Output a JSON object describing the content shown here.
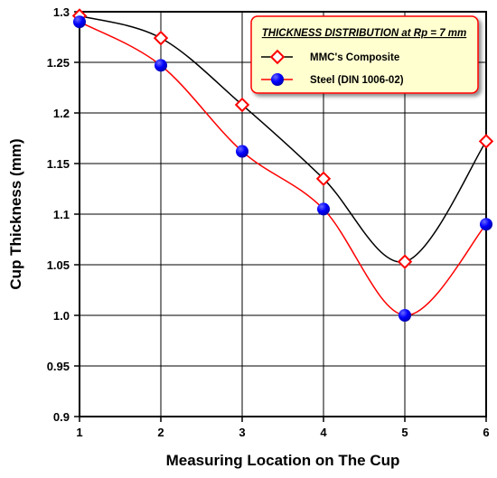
{
  "chart_data": {
    "type": "line",
    "title": "THICKNESS DISTRIBUTION at Rp = 7 mm",
    "xlabel": "Measuring Location on The Cup",
    "ylabel": "Cup Thickness (mm)",
    "x": [
      1,
      2,
      3,
      4,
      5,
      6
    ],
    "xlim": [
      1,
      6
    ],
    "ylim": [
      0.9,
      1.3
    ],
    "x_ticks": [
      "1",
      "2",
      "3",
      "4",
      "5",
      "6"
    ],
    "y_ticks": [
      "0.9",
      "0.95",
      "1.0",
      "1.05",
      "1.1",
      "1.15",
      "1.2",
      "1.25",
      "1.3"
    ],
    "grid": true,
    "legend_position": "top-right",
    "series": [
      {
        "name": "MMC's Composite",
        "values": [
          1.296,
          1.274,
          1.208,
          1.135,
          1.053,
          1.172
        ],
        "color": "#000000",
        "marker": "diamond",
        "marker_color": "#ff0000"
      },
      {
        "name": "Steel (DIN 1006-02)",
        "values": [
          1.29,
          1.247,
          1.162,
          1.105,
          1.0,
          1.09
        ],
        "color": "#ff0000",
        "marker": "circle",
        "marker_color": "#0000ff"
      }
    ]
  }
}
